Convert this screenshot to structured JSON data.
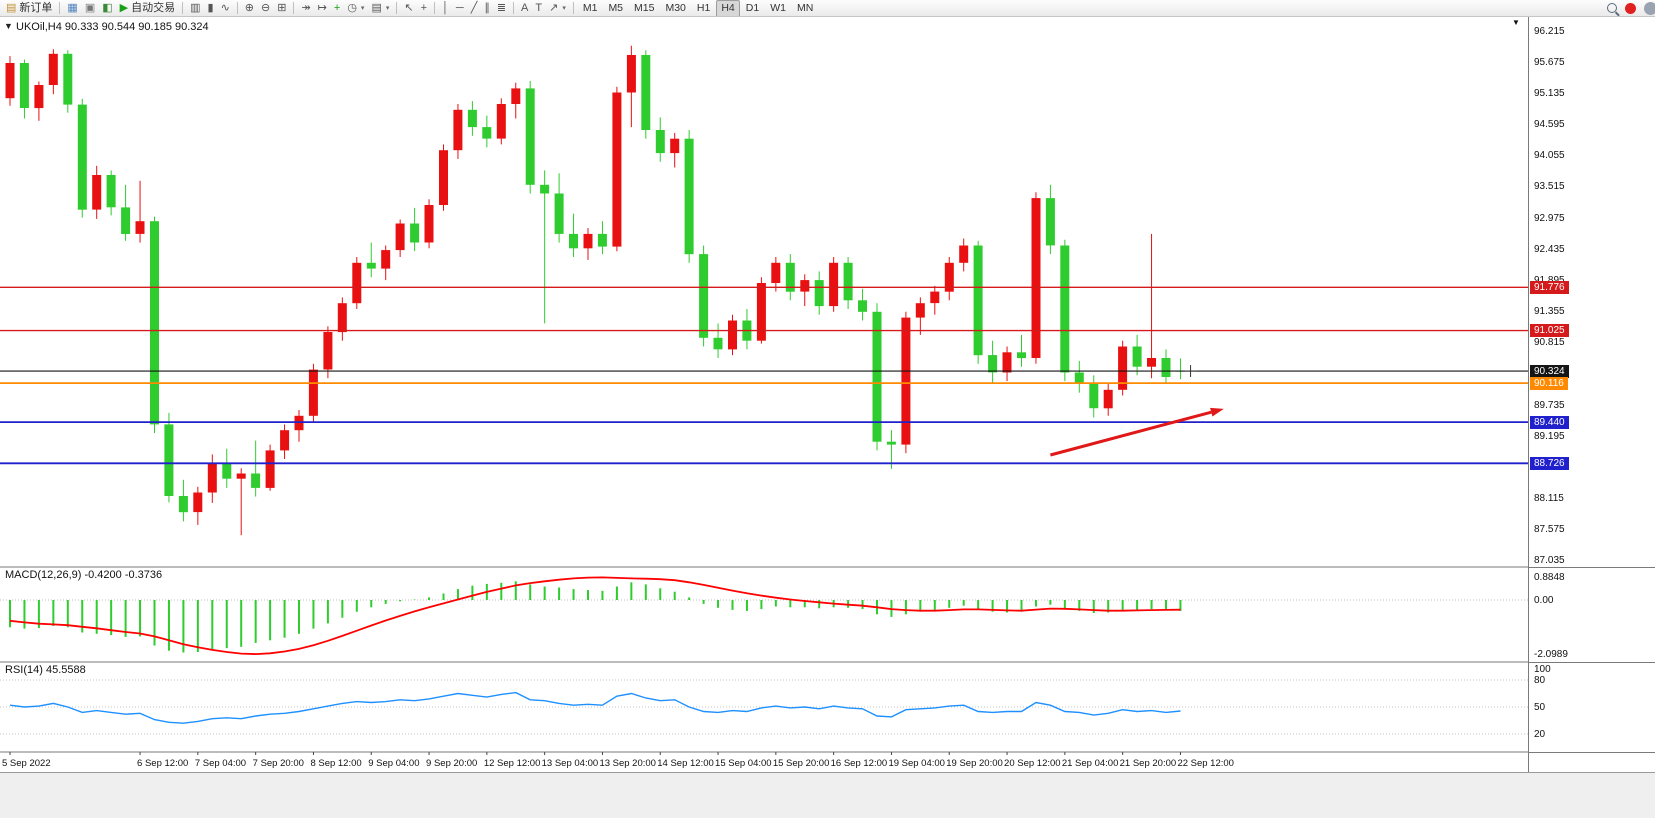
{
  "toolbar": {
    "items": [
      {
        "name": "new-order-button",
        "glyph": "▤",
        "glyph_color": "#c09030",
        "label": "新订单"
      },
      {
        "name": "separator"
      },
      {
        "name": "charts-window-icon",
        "glyph": "▦",
        "glyph_color": "#4f81bd"
      },
      {
        "name": "market-watch-icon",
        "glyph": "▣",
        "glyph_color": "#777777"
      },
      {
        "name": "navigator-icon",
        "glyph": "◧",
        "glyph_color": "#3a8a3a"
      },
      {
        "name": "autotrading-button",
        "glyph": "▶",
        "glyph_color": "#18a018",
        "label": "自动交易"
      },
      {
        "name": "separator"
      },
      {
        "name": "bar-chart-icon",
        "glyph": "▥"
      },
      {
        "name": "candlestick-chart-icon",
        "glyph": "▮"
      },
      {
        "name": "line-chart-icon",
        "glyph": "∿"
      },
      {
        "name": "separator"
      },
      {
        "name": "zoom-in-icon",
        "glyph": "⊕"
      },
      {
        "name": "zoom-out-icon",
        "glyph": "⊖"
      },
      {
        "name": "grid-icon",
        "glyph": "⊞"
      },
      {
        "name": "separator"
      },
      {
        "name": "auto-scroll-icon",
        "glyph": "↠"
      },
      {
        "name": "chart-shift-icon",
        "glyph": "↦"
      },
      {
        "name": "indicators-add-icon",
        "glyph": "+",
        "glyph_color": "#18a018"
      },
      {
        "name": "periods-dropdown",
        "glyph": "◷",
        "caret": true
      },
      {
        "name": "templates-dropdown",
        "glyph": "▤",
        "caret": true
      },
      {
        "name": "separator"
      },
      {
        "name": "cursor-icon",
        "glyph": "↖"
      },
      {
        "name": "crosshair-icon",
        "glyph": "+"
      },
      {
        "name": "separator"
      },
      {
        "name": "vertical-line-icon",
        "glyph": "│"
      },
      {
        "name": "horizontal-line-icon",
        "glyph": "─"
      },
      {
        "name": "trendline-icon",
        "glyph": "╱"
      },
      {
        "name": "channel-icon",
        "glyph": "∥"
      },
      {
        "name": "fibonacci-icon",
        "glyph": "≣"
      },
      {
        "name": "separator"
      },
      {
        "name": "text-icon",
        "glyph": "A"
      },
      {
        "name": "label-icon",
        "glyph": "T"
      },
      {
        "name": "arrows-dropdown",
        "glyph": "↗",
        "caret": true
      },
      {
        "name": "separator"
      }
    ],
    "timeframes": [
      "M1",
      "M5",
      "M15",
      "M30",
      "H1",
      "H4",
      "D1",
      "W1",
      "MN"
    ],
    "active_timeframe": "H4",
    "right_icons": [
      {
        "name": "search-icon"
      },
      {
        "name": "notifications-badge",
        "color": "#e02020"
      },
      {
        "name": "account-icon",
        "color": "#9aa4b0"
      }
    ]
  },
  "chart": {
    "one_click_glyph": "▼",
    "shift_marker_glyph": "▼",
    "title": "UKOil,H4 90.333 90.544 90.185 90.324",
    "symbol": "UKOil",
    "period": "H4",
    "macd_label": "MACD(12,26,9) -0.4200 -0.3736",
    "rsi_label": "RSI(14) 45.5588"
  },
  "chart_data": [
    {
      "type": "candlestick",
      "title": "UKOil,H4",
      "up_color": "#e81010",
      "down_color": "#2ecc2e",
      "current_ohlc": {
        "open": 90.333,
        "high": 90.544,
        "low": 90.185,
        "close": 90.324
      },
      "y_ticks": [
        "96.215",
        "95.675",
        "95.135",
        "94.595",
        "94.055",
        "93.515",
        "92.975",
        "92.435",
        "91.895",
        "91.355",
        "90.815",
        "90.275",
        "89.735",
        "89.195",
        "88.655",
        "88.115",
        "87.575",
        "87.035"
      ],
      "x_labels": [
        [
          0,
          "5 Sep 2022"
        ],
        [
          9,
          "6 Sep 12:00"
        ],
        [
          13,
          "7 Sep 04:00"
        ],
        [
          17,
          "7 Sep 20:00"
        ],
        [
          21,
          "8 Sep 12:00"
        ],
        [
          25,
          "9 Sep 04:00"
        ],
        [
          29,
          "9 Sep 20:00"
        ],
        [
          33,
          "12 Sep 12:00"
        ],
        [
          37,
          "13 Sep 04:00"
        ],
        [
          41,
          "13 Sep 20:00"
        ],
        [
          45,
          "14 Sep 12:00"
        ],
        [
          49,
          "15 Sep 04:00"
        ],
        [
          53,
          "15 Sep 20:00"
        ],
        [
          57,
          "16 Sep 12:00"
        ],
        [
          61,
          "19 Sep 04:00"
        ],
        [
          65,
          "19 Sep 20:00"
        ],
        [
          69,
          "20 Sep 12:00"
        ],
        [
          73,
          "21 Sep 04:00"
        ],
        [
          77,
          "21 Sep 20:00"
        ],
        [
          81,
          "22 Sep 12:00"
        ]
      ],
      "hlines": [
        {
          "value": "91.776",
          "price": 91.776,
          "color": "#d41a1a",
          "width": 1.4
        },
        {
          "value": "91.025",
          "price": 91.025,
          "color": "#d41a1a",
          "width": 1.4
        },
        {
          "value": "90.324",
          "price": 90.324,
          "color": "#151515",
          "width": 1.1
        },
        {
          "value": "90.116",
          "price": 90.116,
          "color": "#ff8a00",
          "width": 1.8
        },
        {
          "value": "89.440",
          "price": 89.44,
          "color": "#2020cc",
          "width": 1.8
        },
        {
          "value": "88.726",
          "price": 88.726,
          "color": "#2020cc",
          "width": 1.8
        }
      ],
      "badges": [
        {
          "value": "91.776",
          "price": 91.776,
          "color": "#d41a1a"
        },
        {
          "value": "91.025",
          "price": 91.025,
          "color": "#d41a1a"
        },
        {
          "value": "90.324",
          "price": 90.324,
          "color": "#151515"
        },
        {
          "value": "90.116",
          "price": 90.116,
          "color": "#ff8a00"
        },
        {
          "value": "89.440",
          "price": 89.44,
          "color": "#2020cc"
        },
        {
          "value": "88.726",
          "price": 88.726,
          "color": "#2020cc"
        }
      ],
      "annotation_arrow": {
        "from": {
          "bar": 72,
          "price": 88.87
        },
        "to": {
          "bar": 84,
          "price": 89.67
        },
        "color": "#e01818"
      },
      "cross_marker": {
        "bar": 81.7,
        "price": 90.324
      },
      "candles": [
        [
          95.05,
          95.78,
          94.92,
          95.66
        ],
        [
          95.66,
          95.72,
          94.7,
          94.88
        ],
        [
          94.88,
          95.34,
          94.66,
          95.28
        ],
        [
          95.28,
          95.9,
          95.12,
          95.82
        ],
        [
          95.82,
          95.88,
          94.8,
          94.94
        ],
        [
          94.94,
          95.04,
          92.98,
          93.12
        ],
        [
          93.12,
          93.88,
          92.96,
          93.72
        ],
        [
          93.72,
          93.8,
          93.02,
          93.16
        ],
        [
          93.16,
          93.55,
          92.58,
          92.7
        ],
        [
          92.7,
          93.62,
          92.55,
          92.92
        ],
        [
          92.92,
          93.0,
          89.25,
          89.4
        ],
        [
          89.4,
          89.6,
          88.05,
          88.16
        ],
        [
          88.16,
          88.44,
          87.72,
          87.88
        ],
        [
          87.88,
          88.32,
          87.66,
          88.22
        ],
        [
          88.22,
          88.88,
          88.04,
          88.74
        ],
        [
          88.74,
          88.98,
          88.3,
          88.46
        ],
        [
          88.46,
          88.64,
          87.48,
          88.55
        ],
        [
          88.55,
          89.12,
          88.15,
          88.3
        ],
        [
          88.3,
          89.05,
          88.25,
          88.95
        ],
        [
          88.95,
          89.4,
          88.8,
          89.3
        ],
        [
          89.3,
          89.65,
          89.1,
          89.55
        ],
        [
          89.55,
          90.45,
          89.45,
          90.35
        ],
        [
          90.35,
          91.1,
          90.2,
          91.0
        ],
        [
          91.0,
          91.6,
          90.85,
          91.5
        ],
        [
          91.5,
          92.3,
          91.4,
          92.2
        ],
        [
          92.2,
          92.55,
          91.95,
          92.1
        ],
        [
          92.1,
          92.5,
          91.9,
          92.42
        ],
        [
          92.42,
          92.95,
          92.3,
          92.88
        ],
        [
          92.88,
          93.15,
          92.4,
          92.55
        ],
        [
          92.55,
          93.3,
          92.45,
          93.2
        ],
        [
          93.2,
          94.25,
          93.1,
          94.15
        ],
        [
          94.15,
          94.95,
          94.0,
          94.85
        ],
        [
          94.85,
          95.0,
          94.4,
          94.55
        ],
        [
          94.55,
          94.75,
          94.2,
          94.35
        ],
        [
          94.35,
          95.05,
          94.25,
          94.95
        ],
        [
          94.95,
          95.32,
          94.7,
          95.22
        ],
        [
          95.22,
          95.35,
          93.4,
          93.55
        ],
        [
          93.55,
          93.8,
          91.15,
          93.4
        ],
        [
          93.4,
          93.75,
          92.55,
          92.7
        ],
        [
          92.7,
          93.05,
          92.3,
          92.45
        ],
        [
          92.45,
          92.8,
          92.25,
          92.7
        ],
        [
          92.7,
          92.92,
          92.35,
          92.48
        ],
        [
          92.48,
          95.25,
          92.4,
          95.15
        ],
        [
          95.15,
          95.96,
          94.55,
          95.8
        ],
        [
          95.8,
          95.88,
          94.35,
          94.5
        ],
        [
          94.5,
          94.72,
          93.95,
          94.1
        ],
        [
          94.1,
          94.45,
          93.85,
          94.35
        ],
        [
          94.35,
          94.5,
          92.2,
          92.35
        ],
        [
          92.35,
          92.5,
          90.75,
          90.9
        ],
        [
          90.9,
          91.15,
          90.55,
          90.7
        ],
        [
          90.7,
          91.3,
          90.6,
          91.2
        ],
        [
          91.2,
          91.4,
          90.7,
          90.85
        ],
        [
          90.85,
          91.95,
          90.8,
          91.85
        ],
        [
          91.85,
          92.3,
          91.7,
          92.2
        ],
        [
          92.2,
          92.35,
          91.55,
          91.7
        ],
        [
          91.7,
          92.0,
          91.45,
          91.9
        ],
        [
          91.9,
          92.05,
          91.3,
          91.45
        ],
        [
          91.45,
          92.3,
          91.35,
          92.2
        ],
        [
          92.2,
          92.3,
          91.4,
          91.55
        ],
        [
          91.55,
          91.75,
          91.2,
          91.35
        ],
        [
          91.35,
          91.5,
          88.95,
          89.1
        ],
        [
          89.1,
          89.3,
          88.63,
          89.05
        ],
        [
          89.05,
          91.35,
          88.9,
          91.25
        ],
        [
          91.25,
          91.6,
          90.95,
          91.5
        ],
        [
          91.5,
          91.8,
          91.3,
          91.7
        ],
        [
          91.7,
          92.3,
          91.55,
          92.2
        ],
        [
          92.2,
          92.62,
          92.05,
          92.5
        ],
        [
          92.5,
          92.58,
          90.45,
          90.6
        ],
        [
          90.6,
          90.85,
          90.1,
          90.3
        ],
        [
          90.3,
          90.75,
          90.15,
          90.65
        ],
        [
          90.65,
          90.95,
          90.4,
          90.55
        ],
        [
          90.55,
          93.42,
          90.45,
          93.32
        ],
        [
          93.32,
          93.55,
          92.35,
          92.5
        ],
        [
          92.5,
          92.6,
          90.15,
          90.3
        ],
        [
          90.3,
          90.5,
          89.95,
          90.1
        ],
        [
          90.1,
          90.25,
          89.52,
          89.68
        ],
        [
          89.68,
          90.1,
          89.55,
          90.0
        ],
        [
          90.0,
          90.85,
          89.9,
          90.75
        ],
        [
          90.75,
          90.95,
          90.25,
          90.4
        ],
        [
          90.4,
          92.7,
          90.2,
          90.55
        ],
        [
          90.55,
          90.7,
          90.1,
          90.22
        ],
        [
          90.333,
          90.544,
          90.185,
          90.324
        ]
      ]
    },
    {
      "type": "bar",
      "title": "MACD(12,26,9)",
      "current_values": "-0.4200 -0.3736",
      "histogram_color": "#2ecc2e",
      "signal_color": "#ff0000",
      "y_ticks": [
        {
          "label": "0.8848",
          "value": 0.8848
        },
        {
          "label": "0.00",
          "value": 0
        },
        {
          "label": "-2.0989",
          "value": -2.0989
        }
      ],
      "values": [
        -1.05,
        -1.1,
        -1.08,
        -1.0,
        -1.05,
        -1.25,
        -1.3,
        -1.35,
        -1.42,
        -1.4,
        -1.75,
        -1.95,
        -2.02,
        -2.0,
        -1.9,
        -1.85,
        -1.8,
        -1.65,
        -1.55,
        -1.45,
        -1.3,
        -1.1,
        -0.9,
        -0.68,
        -0.45,
        -0.28,
        -0.15,
        -0.05,
        0.02,
        0.1,
        0.25,
        0.42,
        0.55,
        0.62,
        0.66,
        0.72,
        0.6,
        0.52,
        0.48,
        0.42,
        0.38,
        0.35,
        0.52,
        0.68,
        0.6,
        0.45,
        0.32,
        0.1,
        -0.15,
        -0.3,
        -0.38,
        -0.42,
        -0.35,
        -0.25,
        -0.28,
        -0.28,
        -0.32,
        -0.28,
        -0.3,
        -0.35,
        -0.55,
        -0.65,
        -0.55,
        -0.45,
        -0.38,
        -0.3,
        -0.22,
        -0.35,
        -0.45,
        -0.48,
        -0.45,
        -0.25,
        -0.18,
        -0.35,
        -0.42,
        -0.5,
        -0.48,
        -0.4,
        -0.38,
        -0.35,
        -0.4,
        -0.42
      ],
      "signal": [
        -0.8,
        -0.86,
        -0.91,
        -0.94,
        -0.97,
        -1.03,
        -1.09,
        -1.16,
        -1.23,
        -1.29,
        -1.4,
        -1.55,
        -1.7,
        -1.82,
        -1.92,
        -2.0,
        -2.06,
        -2.08,
        -2.05,
        -1.98,
        -1.88,
        -1.74,
        -1.57,
        -1.38,
        -1.18,
        -0.98,
        -0.79,
        -0.61,
        -0.44,
        -0.28,
        -0.13,
        0.02,
        0.17,
        0.31,
        0.44,
        0.56,
        0.65,
        0.72,
        0.78,
        0.83,
        0.86,
        0.87,
        0.85,
        0.83,
        0.82,
        0.8,
        0.76,
        0.68,
        0.58,
        0.47,
        0.36,
        0.26,
        0.17,
        0.09,
        0.02,
        -0.04,
        -0.09,
        -0.14,
        -0.18,
        -0.22,
        -0.28,
        -0.35,
        -0.39,
        -0.41,
        -0.41,
        -0.39,
        -0.36,
        -0.36,
        -0.38,
        -0.4,
        -0.41,
        -0.37,
        -0.33,
        -0.34,
        -0.36,
        -0.39,
        -0.41,
        -0.41,
        -0.4,
        -0.39,
        -0.38,
        -0.3736
      ]
    },
    {
      "type": "line",
      "title": "RSI(14)",
      "current_value": "45.5588",
      "line_color": "#1e90ff",
      "levels": [
        80,
        50,
        20
      ],
      "y_tick_labels": [
        {
          "label": "100",
          "value": 100
        },
        {
          "label": "80",
          "value": 80
        },
        {
          "label": "50",
          "value": 50
        },
        {
          "label": "20",
          "value": 20
        }
      ],
      "values": [
        52,
        50,
        51,
        54,
        50,
        44,
        46,
        44,
        42,
        43,
        36,
        33,
        32,
        34,
        37,
        38,
        37,
        40,
        42,
        43,
        45,
        48,
        51,
        54,
        56,
        55,
        56,
        58,
        57,
        59,
        62,
        65,
        63,
        61,
        64,
        66,
        58,
        57,
        54,
        52,
        53,
        52,
        62,
        65,
        60,
        57,
        58,
        50,
        45,
        44,
        46,
        45,
        49,
        51,
        49,
        50,
        48,
        51,
        49,
        48,
        40,
        39,
        47,
        48,
        49,
        51,
        52,
        45,
        44,
        45,
        45,
        55,
        52,
        45,
        44,
        41,
        43,
        47,
        45,
        46,
        44,
        45.5588
      ]
    }
  ]
}
